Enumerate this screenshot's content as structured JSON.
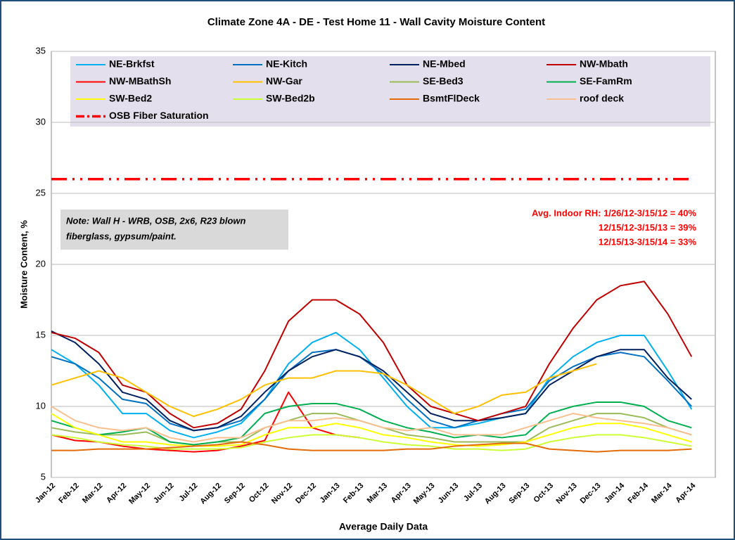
{
  "chart_data": {
    "type": "line",
    "title": "Climate Zone 4A - DE - Test Home 11 - Wall Cavity Moisture Content",
    "x_label": "Average Daily Data",
    "y_label": "Moisture Content, %",
    "categories": [
      "Jan-12",
      "Feb-12",
      "Mar-12",
      "Apr-12",
      "May-12",
      "Jun-12",
      "Jul-12",
      "Aug-12",
      "Sep-12",
      "Oct-12",
      "Nov-12",
      "Dec-12",
      "Jan-13",
      "Feb-13",
      "Mar-13",
      "Apr-13",
      "May-13",
      "Jun-13",
      "Jul-13",
      "Aug-13",
      "Sep-13",
      "Oct-13",
      "Nov-13",
      "Dec-13",
      "Jan-14",
      "Feb-14",
      "Mar-14",
      "Apr-14"
    ],
    "ylim": [
      5,
      35
    ],
    "yticks": [
      5,
      10,
      15,
      20,
      25,
      30,
      35
    ],
    "grid": true,
    "annotations": {
      "note": [
        "Note: Wall H - WRB, OSB, 2x6, R23 blown",
        "fiberglass, gypsum/paint."
      ],
      "rh": [
        "Avg. Indoor RH: 1/26/12-3/15/12 = 40%",
        "12/15/12-3/15/13 = 39%",
        "12/15/13-3/15/14 = 33%"
      ]
    },
    "series": [
      {
        "name": "NE-Brkfst",
        "color": "#00b0f0",
        "values": [
          14,
          13,
          11.5,
          9.5,
          9.5,
          8.3,
          7.8,
          8.2,
          8.8,
          10.5,
          13,
          14.5,
          15.2,
          14,
          12,
          10,
          8.5,
          8.5,
          8.8,
          9.2,
          9.5,
          12,
          13.5,
          14.5,
          15,
          15,
          12.5,
          9.8
        ]
      },
      {
        "name": "NE-Kitch",
        "color": "#0070c0",
        "values": [
          13.5,
          13,
          12,
          10.5,
          10.2,
          8.8,
          8.3,
          8.5,
          9,
          10.5,
          12.5,
          13.8,
          14,
          13.5,
          12.3,
          10.5,
          9,
          8.5,
          9,
          9.5,
          9.8,
          11.8,
          12.8,
          13.5,
          13.8,
          13.5,
          11.8,
          10
        ]
      },
      {
        "name": "NE-Mbed",
        "color": "#002060",
        "values": [
          15.3,
          14.5,
          13,
          11,
          10.5,
          9,
          8.3,
          8.5,
          9.3,
          11,
          12.5,
          13.5,
          14,
          13.5,
          12.5,
          11,
          9.5,
          9,
          9,
          9.2,
          9.5,
          11.5,
          12.5,
          13.5,
          14,
          14,
          12,
          10.5
        ]
      },
      {
        "name": "NW-Mbath",
        "color": "#c00000",
        "values": [
          15.2,
          14.8,
          13.8,
          11.5,
          11,
          9.5,
          8.5,
          8.8,
          9.8,
          12.5,
          16,
          17.5,
          17.5,
          16.5,
          14.5,
          11.5,
          10,
          9.5,
          9,
          9.5,
          10,
          13,
          15.5,
          17.5,
          18.5,
          18.8,
          16.5,
          13.5
        ]
      },
      {
        "name": "NW-MBathSh",
        "color": "#ff0000",
        "values": [
          8,
          7.6,
          7.5,
          7.2,
          7,
          6.9,
          6.8,
          6.9,
          7.2,
          7.6,
          11,
          8.5,
          8,
          7.8,
          null,
          null,
          null,
          null,
          null,
          null,
          null,
          null,
          null,
          null,
          null,
          null,
          null,
          null
        ]
      },
      {
        "name": "NW-Gar",
        "color": "#ffc000",
        "values": [
          11.5,
          12,
          12.5,
          12,
          11,
          10,
          9.3,
          9.8,
          10.5,
          11.5,
          12,
          12,
          12.5,
          12.5,
          12.3,
          11.5,
          10.5,
          9.5,
          10,
          10.8,
          11,
          12,
          12.5,
          13,
          null,
          null,
          null,
          null
        ]
      },
      {
        "name": "SE-Bed3",
        "color": "#9bbb59",
        "values": [
          8.5,
          8.2,
          8,
          8,
          8.2,
          7.5,
          7.3,
          7.5,
          7.5,
          8.5,
          9,
          9.5,
          9.5,
          9,
          8.5,
          8,
          7.8,
          7.5,
          7.5,
          7.5,
          7.5,
          8.5,
          9,
          9.5,
          9.5,
          9.2,
          8.5,
          8
        ]
      },
      {
        "name": "SE-FamRm",
        "color": "#00b050",
        "values": [
          9,
          8.5,
          8,
          8.2,
          8.5,
          7.5,
          7.3,
          7.5,
          7.8,
          9.5,
          10,
          10.2,
          10.2,
          9.8,
          9,
          8.5,
          8.2,
          7.8,
          8,
          7.8,
          8,
          9.5,
          10,
          10.3,
          10.3,
          10,
          9,
          8.5
        ]
      },
      {
        "name": "SW-Bed2",
        "color": "#ffff00",
        "values": [
          9.5,
          8.5,
          8,
          7.5,
          7.5,
          7.3,
          7.2,
          7.2,
          7.3,
          8,
          8.5,
          8.5,
          8.8,
          8.5,
          8,
          7.8,
          7.5,
          7.3,
          7.2,
          7.3,
          7.5,
          8,
          8.5,
          8.8,
          8.8,
          8.5,
          8,
          7.5
        ]
      },
      {
        "name": "SW-Bed2b",
        "color": "#ccff33",
        "values": [
          8,
          7.8,
          7.5,
          7.3,
          7.2,
          7,
          7,
          7,
          7.1,
          7.5,
          7.8,
          8,
          8,
          7.8,
          7.5,
          7.3,
          7.2,
          7,
          7,
          6.9,
          7,
          7.5,
          7.8,
          8,
          8,
          7.8,
          7.5,
          7.2
        ]
      },
      {
        "name": "BsmtFlDeck",
        "color": "#e36c09",
        "values": [
          6.9,
          6.9,
          7,
          7,
          7,
          7.1,
          7.2,
          7.3,
          7.5,
          7.3,
          7,
          6.9,
          6.9,
          6.9,
          6.9,
          7,
          7,
          7.2,
          7.3,
          7.4,
          7.4,
          7,
          6.9,
          6.8,
          6.9,
          6.9,
          6.9,
          7
        ]
      },
      {
        "name": "roof deck",
        "color": "#fabf8f",
        "values": [
          10,
          9,
          8.5,
          8.3,
          8.5,
          7.8,
          7.5,
          7.8,
          7.8,
          8.5,
          9,
          9,
          9.2,
          9,
          8.5,
          8.3,
          8.5,
          8,
          8,
          8,
          8.5,
          9,
          9.5,
          9.2,
          9,
          8.8,
          8.5,
          8
        ]
      },
      {
        "name": "OSB Fiber Saturation",
        "color": "#ff0000",
        "linestyle": "dashdot",
        "values": [
          26,
          26,
          26,
          26,
          26,
          26,
          26,
          26,
          26,
          26,
          26,
          26,
          26,
          26,
          26,
          26,
          26,
          26,
          26,
          26,
          26,
          26,
          26,
          26,
          26,
          26,
          26,
          26
        ]
      }
    ]
  }
}
